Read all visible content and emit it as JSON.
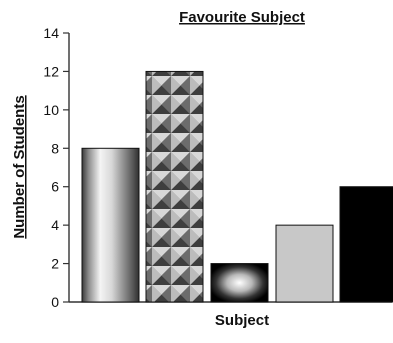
{
  "chart_data": {
    "type": "bar",
    "title": "Favourite Subject",
    "xlabel": "Subject",
    "ylabel": "Number of Students",
    "categories": [
      "",
      "",
      "",
      "",
      ""
    ],
    "values": [
      8,
      12,
      2,
      4,
      6
    ],
    "ylim": [
      0,
      14
    ],
    "yticks": [
      0,
      2,
      4,
      6,
      8,
      10,
      12,
      14
    ],
    "grid": false,
    "legend": "none",
    "bar_styles": [
      "metallic-gradient",
      "pyramid-pattern",
      "radial-sphere",
      "light-gray",
      "solid-black"
    ]
  }
}
